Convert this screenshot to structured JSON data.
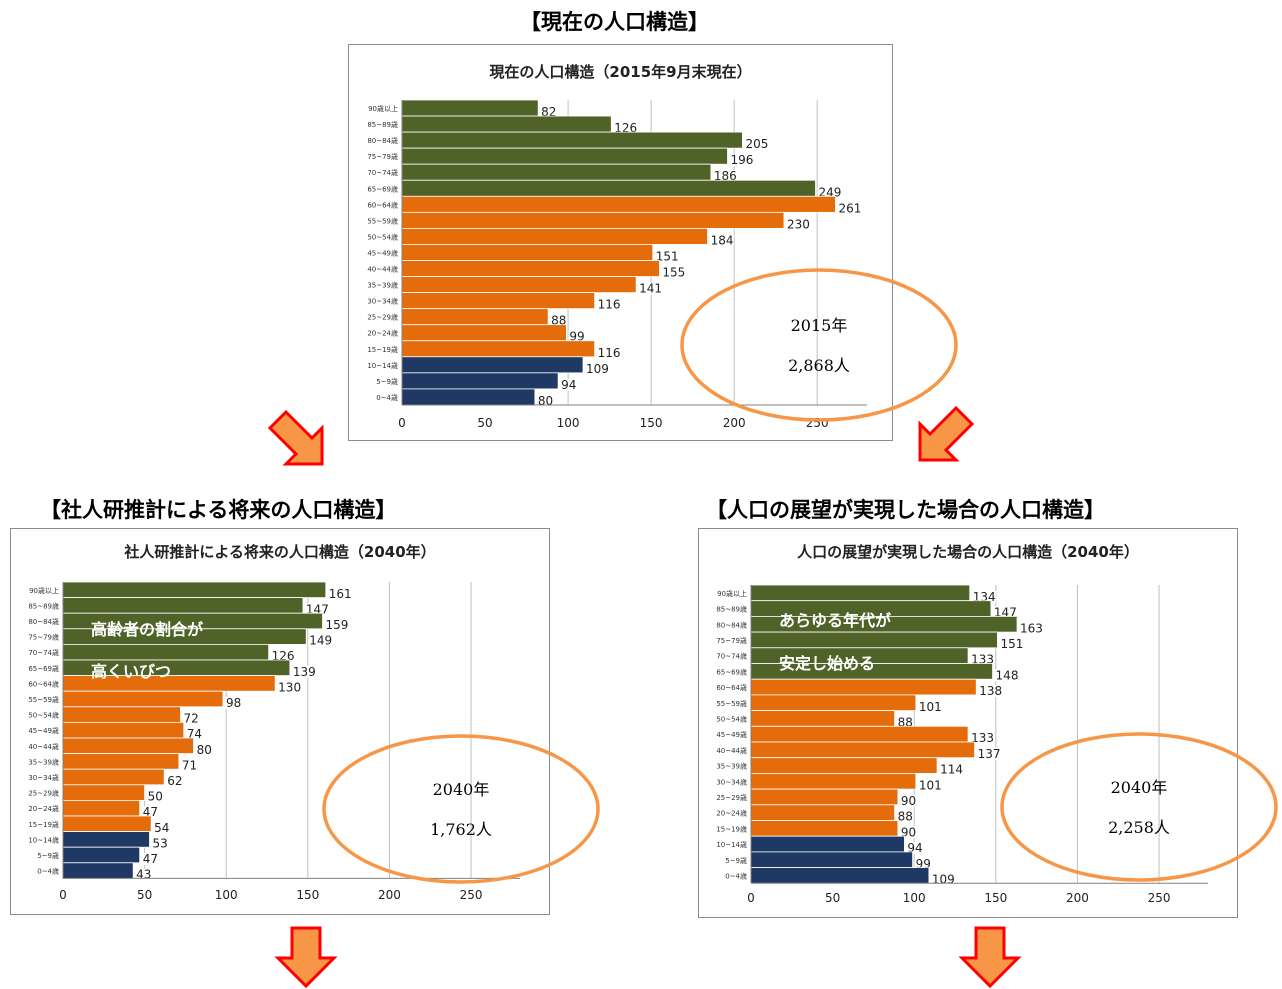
{
  "headings": {
    "current": "【現在の人口構造】",
    "ipss": "【社人研推計による将来の人口構造】",
    "vision": "【人口の展望が実現した場合の人口構造】"
  },
  "chart_data": [
    {
      "id": "current",
      "type": "bar",
      "orientation": "horizontal",
      "title": "現在の人口構造（2015年9月末現在）",
      "categories": [
        "90歳以上",
        "85~89歳",
        "80~84歳",
        "75~79歳",
        "70~74歳",
        "65~69歳",
        "60~64歳",
        "55~59歳",
        "50~54歳",
        "45~49歳",
        "40~44歳",
        "35~39歳",
        "30~34歳",
        "25~29歳",
        "20~24歳",
        "15~19歳",
        "10~14歳",
        "5~9歳",
        "0~4歳"
      ],
      "values": [
        82,
        126,
        205,
        196,
        186,
        249,
        261,
        230,
        184,
        151,
        155,
        141,
        116,
        88,
        99,
        116,
        109,
        94,
        80
      ],
      "groups": [
        "elderly",
        "elderly",
        "elderly",
        "elderly",
        "elderly",
        "elderly",
        "working",
        "working",
        "working",
        "working",
        "working",
        "working",
        "working",
        "working",
        "working",
        "working",
        "child",
        "child",
        "child"
      ],
      "xticks": [
        0,
        50,
        100,
        150,
        200,
        250
      ],
      "xlim": [
        0,
        280
      ],
      "annotation": {
        "year": "2015年",
        "total": "2,868人"
      }
    },
    {
      "id": "ipss",
      "type": "bar",
      "orientation": "horizontal",
      "title": "社人研推計による将来の人口構造（2040年）",
      "categories": [
        "90歳以上",
        "85~89歳",
        "80~84歳",
        "75~79歳",
        "70~74歳",
        "65~69歳",
        "60~64歳",
        "55~59歳",
        "50~54歳",
        "45~49歳",
        "40~44歳",
        "35~39歳",
        "30~34歳",
        "25~29歳",
        "20~24歳",
        "15~19歳",
        "10~14歳",
        "5~9歳",
        "0~4歳"
      ],
      "values": [
        161,
        147,
        159,
        149,
        126,
        139,
        130,
        98,
        72,
        74,
        80,
        71,
        62,
        50,
        47,
        54,
        53,
        47,
        43
      ],
      "groups": [
        "elderly",
        "elderly",
        "elderly",
        "elderly",
        "elderly",
        "elderly",
        "working",
        "working",
        "working",
        "working",
        "working",
        "working",
        "working",
        "working",
        "working",
        "working",
        "child",
        "child",
        "child"
      ],
      "xticks": [
        0,
        50,
        100,
        150,
        200,
        250
      ],
      "xlim": [
        0,
        280
      ],
      "overlay": [
        "高齢者の割合が",
        "高くいびつ"
      ],
      "annotation": {
        "year": "2040年",
        "total": "1,762人"
      }
    },
    {
      "id": "vision",
      "type": "bar",
      "orientation": "horizontal",
      "title": "人口の展望が実現した場合の人口構造（2040年）",
      "categories": [
        "90歳以上",
        "85~89歳",
        "80~84歳",
        "75~79歳",
        "70~74歳",
        "65~69歳",
        "60~64歳",
        "55~59歳",
        "50~54歳",
        "45~49歳",
        "40~44歳",
        "35~39歳",
        "30~34歳",
        "25~29歳",
        "20~24歳",
        "15~19歳",
        "10~14歳",
        "5~9歳",
        "0~4歳"
      ],
      "values": [
        134,
        147,
        163,
        151,
        133,
        148,
        138,
        101,
        88,
        133,
        137,
        114,
        101,
        90,
        88,
        90,
        94,
        99,
        109
      ],
      "groups": [
        "elderly",
        "elderly",
        "elderly",
        "elderly",
        "elderly",
        "elderly",
        "working",
        "working",
        "working",
        "working",
        "working",
        "working",
        "working",
        "working",
        "working",
        "working",
        "child",
        "child",
        "child"
      ],
      "xticks": [
        0,
        50,
        100,
        150,
        200,
        250
      ],
      "xlim": [
        0,
        280
      ],
      "overlay": [
        "あらゆる年代が",
        "安定し始める"
      ],
      "annotation": {
        "year": "2040年",
        "total": "2,258人"
      }
    }
  ],
  "colors": {
    "elderly": "#4f6228",
    "working": "#e46c0a",
    "child": "#1f3864",
    "ellipse": "#f79646",
    "arrow_fill": "#f79646",
    "arrow_stroke": "#ff0000",
    "grid": "#bfbfbf"
  }
}
